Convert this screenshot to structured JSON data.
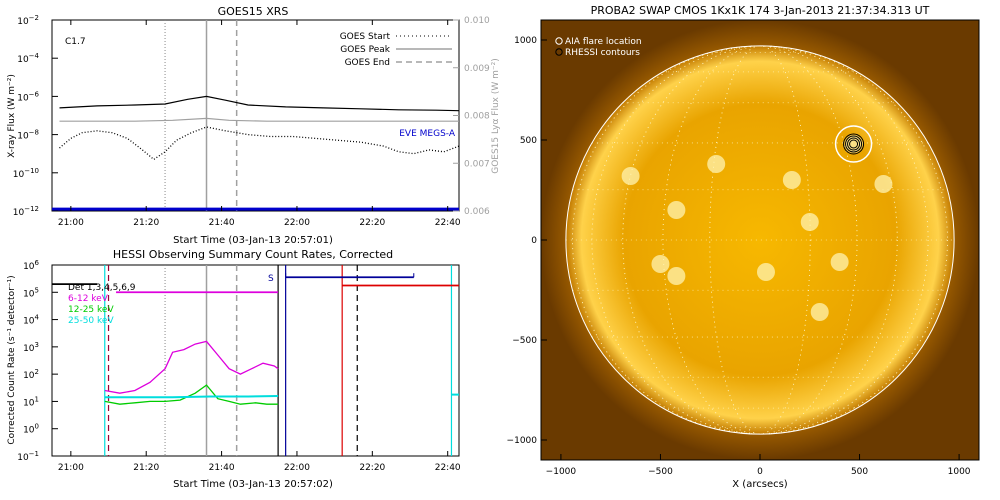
{
  "colors": {
    "black": "#000000",
    "grey": "#a0a0a0",
    "blue": "#0000cc",
    "hessi_blue": "#000099",
    "magenta": "#dd00dd",
    "green": "#00cc00",
    "cyan": "#00dddd",
    "red": "#dd0000",
    "maroon": "#990033",
    "sun_core": "#f2b200",
    "sun_edge": "#b36b00",
    "white": "#ffffff"
  },
  "chart_data": [
    {
      "id": "goes",
      "type": "line",
      "title": "GOES15 XRS",
      "xlabel": "Start Time (03-Jan-13 20:57:01)",
      "ylabel": "X-ray Flux (W m⁻²)",
      "ylabel_right": "GOES15 Lyα Flux (W m⁻²)",
      "xlim": [
        -2,
        106
      ],
      "ylim_log": [
        -12,
        -2
      ],
      "y2lim": [
        0.006,
        0.01
      ],
      "x_ticks": [
        {
          "v": 3,
          "label": "21:00"
        },
        {
          "v": 23,
          "label": "21:20"
        },
        {
          "v": 43,
          "label": "21:40"
        },
        {
          "v": 63,
          "label": "22:00"
        },
        {
          "v": 83,
          "label": "22:20"
        },
        {
          "v": 103,
          "label": "22:40"
        }
      ],
      "y_ticks": [
        {
          "e": -12,
          "label": "10",
          "sup": "−12"
        },
        {
          "e": -10,
          "label": "10",
          "sup": "−10"
        },
        {
          "e": -8,
          "label": "10",
          "sup": "−8"
        },
        {
          "e": -6,
          "label": "10",
          "sup": "−6"
        },
        {
          "e": -4,
          "label": "10",
          "sup": "−4"
        },
        {
          "e": -2,
          "label": "10",
          "sup": "−2"
        }
      ],
      "y2_ticks": [
        "0.006",
        "0.007",
        "0.008",
        "0.009",
        "0.010"
      ],
      "y2_tick_values": [
        0.006,
        0.007,
        0.008,
        0.009,
        0.01
      ],
      "class_label": "C1.7",
      "legend": [
        "GOES Start",
        "GOES Peak",
        "GOES End"
      ],
      "eve_label": "EVE MEGS-A",
      "markers": {
        "start": 28,
        "peak": 39,
        "end": 47
      },
      "series": [
        {
          "name": "long",
          "color": "black",
          "style": "solid",
          "x": [
            0,
            10,
            20,
            28,
            34,
            39,
            44,
            50,
            60,
            70,
            80,
            90,
            100,
            106
          ],
          "y": [
            -6.6,
            -6.5,
            -6.45,
            -6.4,
            -6.15,
            -6.0,
            -6.2,
            -6.45,
            -6.55,
            -6.6,
            -6.65,
            -6.7,
            -6.72,
            -6.75
          ]
        },
        {
          "name": "lya",
          "color": "grey",
          "style": "solid",
          "x": [
            0,
            10,
            20,
            30,
            39,
            45,
            55,
            65,
            75,
            85,
            95,
            106
          ],
          "y": [
            -7.3,
            -7.3,
            -7.3,
            -7.25,
            -7.15,
            -7.25,
            -7.3,
            -7.3,
            -7.3,
            -7.3,
            -7.3,
            -7.3
          ]
        },
        {
          "name": "short",
          "color": "black",
          "style": "dotted",
          "x": [
            0,
            3,
            6,
            10,
            14,
            18,
            22,
            25,
            28,
            31,
            35,
            39,
            44,
            50,
            56,
            62,
            68,
            74,
            80,
            86,
            90,
            94,
            98,
            102,
            106
          ],
          "y": [
            -8.7,
            -8.2,
            -7.9,
            -7.8,
            -7.9,
            -8.2,
            -8.8,
            -9.3,
            -8.9,
            -8.3,
            -7.9,
            -7.6,
            -7.8,
            -8.0,
            -8.1,
            -8.1,
            -8.2,
            -8.3,
            -8.4,
            -8.6,
            -8.9,
            -9.0,
            -8.8,
            -8.9,
            -8.6
          ]
        },
        {
          "name": "eve",
          "color": "blue",
          "style": "solid",
          "x": [
            -2,
            106
          ],
          "y": [
            -11.9,
            -11.9
          ]
        }
      ]
    },
    {
      "id": "hessi",
      "type": "line",
      "title": "HESSI Observing Summary Count Rates, Corrected",
      "xlabel": "Start Time (03-Jan-13 20:57:02)",
      "ylabel": "Corrected Count Rate (s⁻¹ detector⁻¹)",
      "xlim": [
        -2,
        106
      ],
      "ylim_log": [
        -1,
        6
      ],
      "x_ticks": [
        {
          "v": 3,
          "label": "21:00"
        },
        {
          "v": 23,
          "label": "21:20"
        },
        {
          "v": 43,
          "label": "21:40"
        },
        {
          "v": 63,
          "label": "22:00"
        },
        {
          "v": 83,
          "label": "22:20"
        },
        {
          "v": 103,
          "label": "22:40"
        }
      ],
      "y_ticks": [
        {
          "e": -1,
          "label": "10",
          "sup": "−1"
        },
        {
          "e": 0,
          "label": "10",
          "sup": "0"
        },
        {
          "e": 1,
          "label": "10",
          "sup": "1"
        },
        {
          "e": 2,
          "label": "10",
          "sup": "2"
        },
        {
          "e": 3,
          "label": "10",
          "sup": "3"
        },
        {
          "e": 4,
          "label": "10",
          "sup": "4"
        },
        {
          "e": 5,
          "label": "10",
          "sup": "5"
        },
        {
          "e": 6,
          "label": "10",
          "sup": "6"
        }
      ],
      "legend": [
        {
          "label": "Det 1,3,4,5,6,9",
          "color": "black"
        },
        {
          "label": "6-12 keV",
          "color": "magenta"
        },
        {
          "label": "12-25 keV",
          "color": "green"
        },
        {
          "label": "25-50 keV",
          "color": "cyan"
        }
      ],
      "saa_label": "S",
      "markers": {
        "goes_start": 28,
        "goes_peak": 39,
        "goes_end": 47
      },
      "series": [
        {
          "name": "6-12 keV",
          "color": "magenta",
          "x": [
            12,
            16,
            20,
            24,
            28,
            30,
            33,
            36,
            39,
            42,
            45,
            48,
            51,
            54,
            57,
            58
          ],
          "y": [
            1.4,
            1.3,
            1.4,
            1.7,
            2.2,
            2.8,
            2.9,
            3.1,
            3.2,
            2.7,
            2.2,
            2.0,
            2.2,
            2.4,
            2.3,
            2.2
          ]
        },
        {
          "name": "12-25 keV",
          "color": "green",
          "x": [
            12,
            16,
            20,
            24,
            28,
            32,
            36,
            39,
            42,
            45,
            48,
            52,
            55,
            58
          ],
          "y": [
            1.0,
            0.9,
            0.95,
            1.0,
            1.0,
            1.05,
            1.3,
            1.6,
            1.1,
            1.0,
            0.9,
            0.95,
            0.9,
            0.9
          ]
        },
        {
          "name": "25-50 keV",
          "color": "cyan",
          "x": [
            12,
            20,
            30,
            40,
            50,
            58
          ],
          "y": [
            1.15,
            1.15,
            1.15,
            1.18,
            1.18,
            1.2
          ]
        },
        {
          "name": "25-50 keV late",
          "color": "cyan",
          "x": [
            104,
            106
          ],
          "y": [
            1.25,
            1.25
          ]
        }
      ],
      "flags": [
        {
          "color": "magenta",
          "x": [
            15,
            58
          ],
          "y": 5.0
        },
        {
          "color": "black",
          "x": [
            -2,
            10
          ],
          "y": 5.3
        },
        {
          "color": "hessi_blue",
          "x": [
            60,
            94
          ],
          "y": 5.55
        },
        {
          "color": "red",
          "x": [
            75,
            106
          ],
          "y": 5.25
        }
      ],
      "night_edges": [
        {
          "color": "cyan",
          "x": 12
        },
        {
          "color": "black",
          "x": 58
        },
        {
          "color": "hessi_blue",
          "x": 60
        },
        {
          "color": "red",
          "x": 75
        },
        {
          "color": "cyan",
          "x": 104
        }
      ],
      "dashed_markers": [
        {
          "color": "maroon",
          "x": 13
        },
        {
          "color": "black",
          "x": 79
        }
      ]
    },
    {
      "id": "swap",
      "type": "scatter",
      "title": "PROBA2 SWAP CMOS 1Kx1K 174   3-Jan-2013 21:37:34.313 UT",
      "xlabel": "X (arcsecs)",
      "ylabel": "Y (arcsecs)",
      "xlim": [
        -1100,
        1100
      ],
      "ylim": [
        -1100,
        1100
      ],
      "x_ticks": [
        -1000,
        -500,
        0,
        500,
        1000
      ],
      "y_ticks": [
        -1000,
        -500,
        0,
        500,
        1000
      ],
      "legend": [
        "AIA flare location",
        "RHESSI contours"
      ],
      "solar_radius": 975,
      "flare": {
        "x": 470,
        "y": 480
      },
      "active_regions": [
        {
          "x": 470,
          "y": 480
        },
        {
          "x": -420,
          "y": 150
        },
        {
          "x": -420,
          "y": -180
        },
        {
          "x": 30,
          "y": -160
        },
        {
          "x": 250,
          "y": 90
        },
        {
          "x": -500,
          "y": -120
        },
        {
          "x": 620,
          "y": 280
        },
        {
          "x": 400,
          "y": -110
        },
        {
          "x": 160,
          "y": 300
        },
        {
          "x": -220,
          "y": 380
        },
        {
          "x": -650,
          "y": 320
        },
        {
          "x": 300,
          "y": -360
        }
      ]
    }
  ]
}
